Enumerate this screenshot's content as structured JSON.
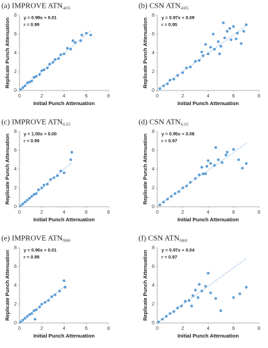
{
  "chart_data": [
    {
      "type": "scatter",
      "title": "(a) IMPROVE ATN₄₀₅",
      "annotations": [
        "y = 0.99x + 0.01",
        "r = 0.99"
      ],
      "fit": {
        "slope": 0.99,
        "intercept": 0.01
      },
      "x_label": "Initial Punch Attenuation",
      "y_label": "Replicate Punch Attenuation",
      "color": "#5b9bd5",
      "xlim": [
        0,
        8
      ],
      "xticks": [
        0,
        2,
        4,
        6,
        8
      ],
      "ylim": [
        0,
        8
      ],
      "yticks": [
        0,
        2,
        4,
        6,
        8
      ],
      "x": [
        0.1,
        0.3,
        0.5,
        0.7,
        0.9,
        1.1,
        1.3,
        1.5,
        1.8,
        2.0,
        2.2,
        2.5,
        2.7,
        3.0,
        3.2,
        3.5,
        3.7,
        4.0,
        4.3,
        4.6,
        5.0,
        5.5,
        6.0,
        6.4,
        4.8,
        5.6
      ],
      "y": [
        0.1,
        0.3,
        0.5,
        0.8,
        0.9,
        1.0,
        1.4,
        1.5,
        1.7,
        2.1,
        2.2,
        2.4,
        2.8,
        3.0,
        3.3,
        3.4,
        3.8,
        3.9,
        4.5,
        4.4,
        5.1,
        5.3,
        6.1,
        5.9,
        5.3,
        5.9
      ]
    },
    {
      "type": "scatter",
      "title": "(b) CSN ATN₄₀₅",
      "annotations": [
        "y = 0.97x + 0.09",
        "r = 0.95"
      ],
      "fit": {
        "slope": 0.97,
        "intercept": 0.09
      },
      "x_label": "Initial Punch Attenuation",
      "y_label": "Replicate Punch Attenuation",
      "color": "#5b9bd5",
      "xlim": [
        0,
        8
      ],
      "xticks": [
        0,
        2,
        4,
        6,
        8
      ],
      "ylim": [
        0,
        8
      ],
      "yticks": [
        0,
        2,
        4,
        6,
        8
      ],
      "x": [
        0.2,
        0.5,
        0.8,
        1.0,
        1.3,
        1.6,
        2.0,
        2.3,
        2.6,
        3.0,
        3.3,
        3.6,
        4.0,
        4.2,
        4.5,
        4.8,
        5.0,
        5.3,
        5.5,
        5.8,
        6.0,
        6.3,
        6.6,
        7.0,
        3.8,
        4.4,
        5.2,
        5.7,
        6.2,
        4.9,
        3.5,
        6.8
      ],
      "y": [
        0.2,
        0.5,
        0.7,
        1.1,
        1.2,
        1.6,
        1.9,
        2.4,
        2.5,
        3.1,
        3.2,
        3.7,
        3.9,
        4.6,
        4.4,
        5.2,
        4.7,
        5.6,
        6.3,
        5.4,
        6.8,
        6.1,
        5.0,
        7.0,
        4.9,
        6.0,
        7.2,
        6.6,
        5.5,
        3.9,
        4.1,
        6.3
      ]
    },
    {
      "type": "scatter",
      "title": "(c) IMPROVE ATN₆₃₅",
      "annotations": [
        "y = 1.00x + 0.00",
        "r = 0.99"
      ],
      "fit": {
        "slope": 1.0,
        "intercept": 0.0
      },
      "x_label": "Initial Punch Attenuation",
      "y_label": "Replicate Punch Attenuation",
      "color": "#5b9bd5",
      "xlim": [
        0,
        8
      ],
      "xticks": [
        0,
        2,
        4,
        6,
        8
      ],
      "ylim": [
        0,
        8
      ],
      "yticks": [
        0,
        2,
        4,
        6,
        8
      ],
      "x": [
        0.1,
        0.3,
        0.5,
        0.7,
        0.9,
        1.1,
        1.3,
        1.5,
        1.7,
        2.0,
        2.2,
        2.5,
        2.8,
        3.1,
        3.4,
        3.7,
        4.0,
        4.6,
        4.7
      ],
      "y": [
        0.1,
        0.3,
        0.5,
        0.7,
        0.9,
        1.1,
        1.3,
        1.4,
        1.8,
        2.0,
        2.3,
        2.4,
        2.9,
        3.1,
        3.3,
        3.8,
        3.6,
        5.0,
        5.8
      ]
    },
    {
      "type": "scatter",
      "title": "(d) CSN ATN₆₃₅",
      "annotations": [
        "y = 0.95x + 0.08",
        "r = 0.97"
      ],
      "fit": {
        "slope": 0.95,
        "intercept": 0.08
      },
      "x_label": "Initial Punch Attenuation",
      "y_label": "Replicate Punch Attenuation",
      "color": "#5b9bd5",
      "xlim": [
        0,
        8
      ],
      "xticks": [
        0,
        2,
        4,
        6,
        8
      ],
      "ylim": [
        0,
        8
      ],
      "yticks": [
        0,
        2,
        4,
        6,
        8
      ],
      "x": [
        0.2,
        0.5,
        0.8,
        1.1,
        1.4,
        1.7,
        2.0,
        2.3,
        2.6,
        3.0,
        3.3,
        3.6,
        3.9,
        4.2,
        4.5,
        4.8,
        5.1,
        5.4,
        6.0,
        6.4,
        7.0,
        3.5,
        4.0,
        4.6,
        5.5,
        6.7,
        3.8
      ],
      "y": [
        0.2,
        0.5,
        0.8,
        1.1,
        1.4,
        1.6,
        2.0,
        2.2,
        2.6,
        3.0,
        3.4,
        3.5,
        4.3,
        4.6,
        4.4,
        5.0,
        4.7,
        5.5,
        6.1,
        5.0,
        4.6,
        4.2,
        4.9,
        6.3,
        5.8,
        4.1,
        3.5
      ]
    },
    {
      "type": "scatter",
      "title": "(e) IMPROVE ATN₉₈₀",
      "annotations": [
        "y = 0.96x + 0.01",
        "r = 0.99"
      ],
      "fit": {
        "slope": 0.96,
        "intercept": 0.01
      },
      "x_label": "Initial Punch Attenuation",
      "y_label": "Replicate Punch Attenuation",
      "color": "#5b9bd5",
      "xlim": [
        0,
        8
      ],
      "xticks": [
        0,
        2,
        4,
        6,
        8
      ],
      "ylim": [
        0,
        8
      ],
      "yticks": [
        0,
        2,
        4,
        6,
        8
      ],
      "x": [
        0.1,
        0.3,
        0.5,
        0.7,
        0.9,
        1.1,
        1.3,
        1.5,
        1.8,
        2.0,
        2.3,
        2.6,
        2.9,
        3.2,
        3.6,
        4.0,
        4.1,
        1.4
      ],
      "y": [
        0.1,
        0.3,
        0.5,
        0.7,
        0.9,
        1.0,
        1.3,
        1.4,
        1.7,
        2.0,
        2.2,
        2.4,
        2.8,
        3.0,
        3.4,
        4.5,
        3.8,
        0.4
      ]
    },
    {
      "type": "scatter",
      "title": "(f) CSN ATN₉₈₀",
      "annotations": [
        "y = 0.97x + 0.04",
        "r = 0.97"
      ],
      "fit": {
        "slope": 0.97,
        "intercept": 0.04
      },
      "x_label": "Initial Punch Attenuation",
      "y_label": "Replicate Punch Attenuation",
      "color": "#5b9bd5",
      "xlim": [
        0,
        8
      ],
      "xticks": [
        0,
        2,
        4,
        6,
        8
      ],
      "ylim": [
        0,
        8
      ],
      "yticks": [
        0,
        2,
        4,
        6,
        8
      ],
      "x": [
        0.1,
        0.4,
        0.7,
        1.0,
        1.3,
        1.6,
        1.9,
        2.2,
        2.5,
        2.8,
        3.0,
        3.2,
        3.5,
        3.8,
        4.2,
        4.6,
        5.0,
        6.0,
        6.5,
        7.0,
        3.3,
        2.7,
        4.0
      ],
      "y": [
        0.1,
        0.4,
        0.7,
        1.0,
        1.2,
        1.6,
        1.8,
        2.3,
        2.4,
        2.9,
        3.5,
        2.7,
        3.4,
        3.9,
        3.2,
        2.6,
        1.3,
        2.7,
        3.1,
        3.8,
        4.1,
        1.8,
        5.3
      ]
    }
  ]
}
